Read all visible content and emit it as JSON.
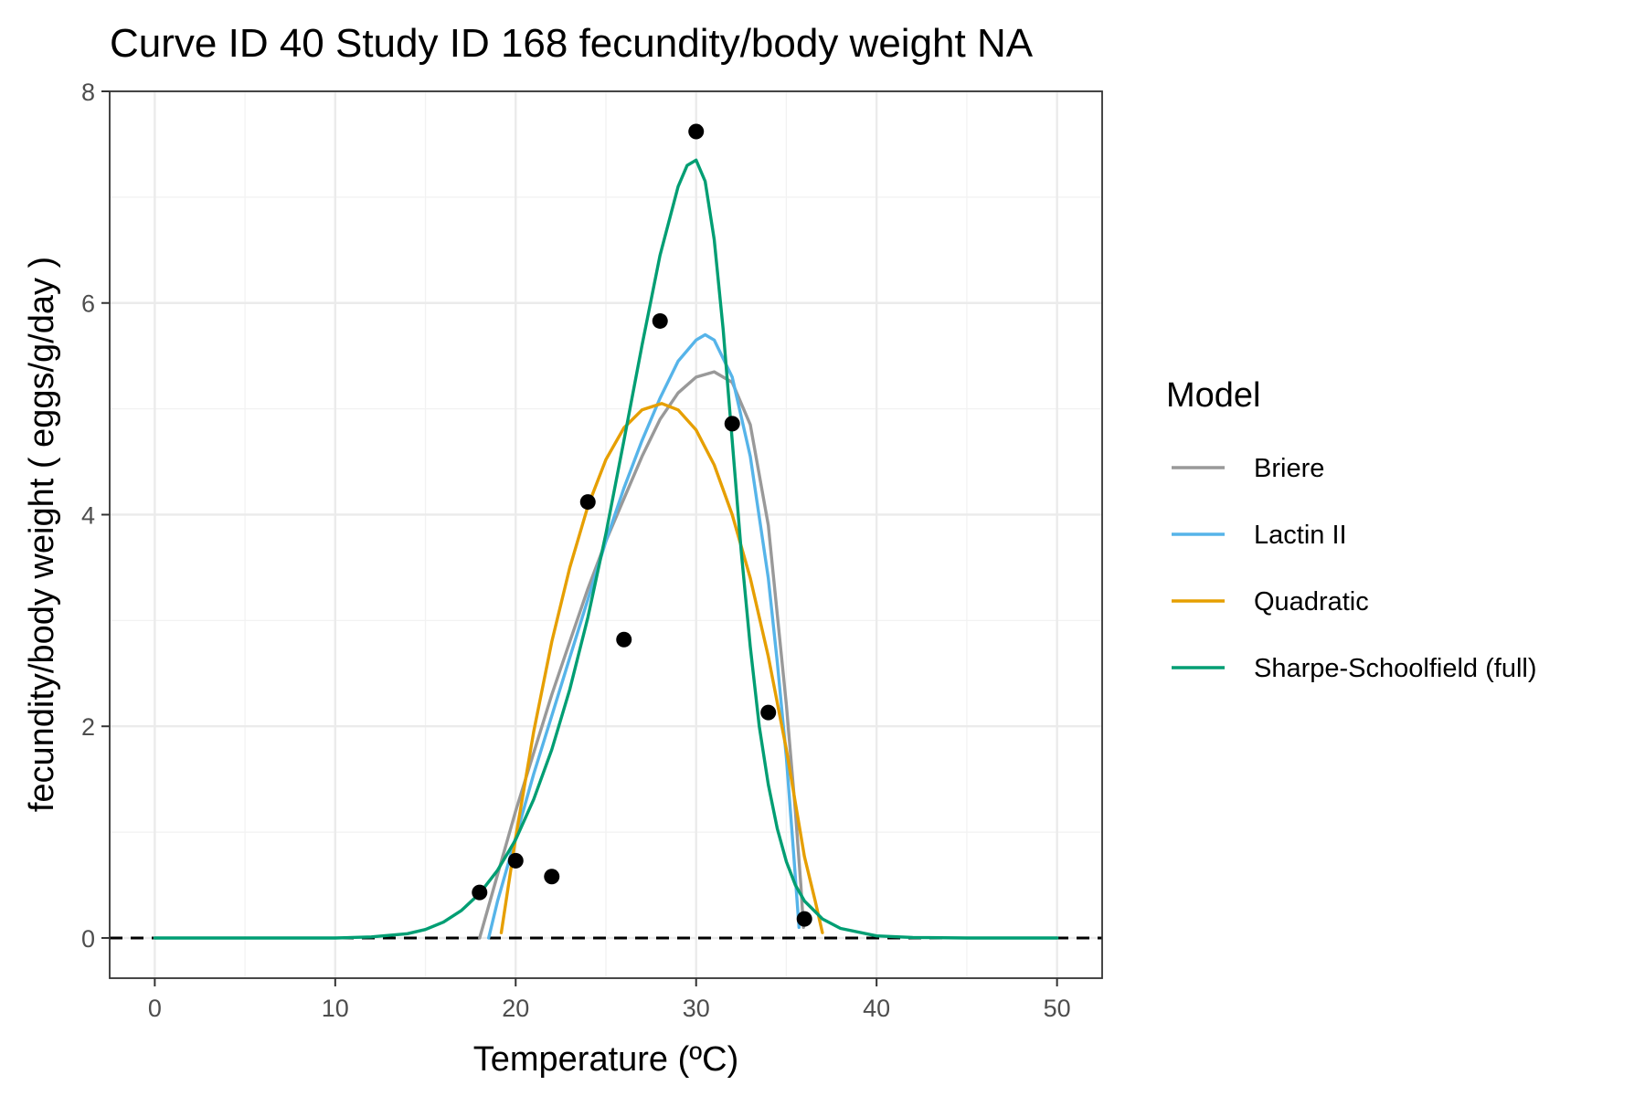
{
  "chart_data": {
    "type": "line",
    "title": "Curve ID 40 Study ID 168 fecundity/body weight NA",
    "xlabel": "Temperature (ºC)",
    "ylabel": "fecundity/body weight ( eggs/g/day )",
    "xlim": [
      -2.5,
      52.5
    ],
    "ylim": [
      -0.38,
      8.0
    ],
    "x_ticks": [
      0,
      10,
      20,
      30,
      40,
      50
    ],
    "x_tick_labels": [
      "0",
      "10",
      "20",
      "30",
      "40",
      "50"
    ],
    "y_ticks": [
      0,
      2,
      4,
      6,
      8
    ],
    "y_tick_labels": [
      "0",
      "2",
      "4",
      "6",
      "8"
    ],
    "grid": true,
    "reference_line": {
      "y": 0,
      "style": "dashed",
      "color": "#000000"
    },
    "legend": {
      "title": "Model",
      "placement": "right",
      "entries": [
        "Briere",
        "Lactin II",
        "Quadratic",
        "Sharpe-Schoolfield (full)"
      ]
    },
    "points": {
      "color": "#000000",
      "x": [
        18,
        20,
        22,
        24,
        26,
        28,
        30,
        32,
        34,
        36
      ],
      "y": [
        0.43,
        0.73,
        0.58,
        4.12,
        2.82,
        5.83,
        7.62,
        4.86,
        2.13,
        0.18
      ]
    },
    "series": [
      {
        "name": "Briere",
        "color": "#999999",
        "x": [
          18,
          19,
          20,
          21,
          22,
          23,
          24,
          25,
          26,
          27,
          28,
          29,
          30,
          31,
          32,
          33,
          34,
          35,
          35.5,
          35.8,
          35.95
        ],
        "y": [
          0.0,
          0.6,
          1.2,
          1.75,
          2.3,
          2.8,
          3.3,
          3.75,
          4.15,
          4.55,
          4.9,
          5.15,
          5.3,
          5.35,
          5.25,
          4.85,
          3.9,
          2.2,
          1.2,
          0.5,
          0.1
        ]
      },
      {
        "name": "Lactin II",
        "color": "#56B4E9",
        "x": [
          18.5,
          19,
          20,
          21,
          22,
          23,
          24,
          25,
          26,
          27,
          28,
          29,
          30,
          30.5,
          31,
          32,
          33,
          34,
          34.5,
          35,
          35.4,
          35.7
        ],
        "y": [
          0.0,
          0.35,
          0.95,
          1.55,
          2.1,
          2.65,
          3.2,
          3.75,
          4.25,
          4.7,
          5.1,
          5.45,
          5.65,
          5.7,
          5.65,
          5.3,
          4.55,
          3.4,
          2.6,
          1.7,
          0.8,
          0.1
        ]
      },
      {
        "name": "Quadratic",
        "color": "#E69F00",
        "x": [
          19.2,
          20,
          21,
          22,
          23,
          24,
          25,
          26,
          27,
          28.1,
          29,
          30,
          31,
          32,
          33,
          34,
          35,
          36,
          36.6,
          37
        ],
        "y": [
          0.05,
          0.95,
          1.95,
          2.8,
          3.5,
          4.08,
          4.52,
          4.82,
          4.99,
          5.05,
          4.99,
          4.8,
          4.47,
          4.0,
          3.4,
          2.66,
          1.78,
          0.77,
          0.35,
          0.05
        ]
      },
      {
        "name": "Sharpe-Schoolfield (full)",
        "color": "#009E73",
        "x": [
          0,
          5,
          10,
          12,
          14,
          15,
          16,
          17,
          18,
          19,
          20,
          21,
          22,
          23,
          24,
          25,
          26,
          27,
          28,
          29,
          29.5,
          30,
          30.5,
          31,
          31.5,
          32,
          32.5,
          33,
          33.5,
          34,
          34.5,
          35,
          35.5,
          36,
          37,
          38,
          40,
          42,
          45,
          50
        ],
        "y": [
          0,
          0,
          0,
          0.01,
          0.04,
          0.08,
          0.15,
          0.26,
          0.42,
          0.64,
          0.93,
          1.31,
          1.78,
          2.35,
          3.03,
          3.82,
          4.7,
          5.6,
          6.45,
          7.1,
          7.3,
          7.35,
          7.15,
          6.6,
          5.75,
          4.7,
          3.65,
          2.75,
          2.0,
          1.45,
          1.03,
          0.72,
          0.5,
          0.35,
          0.18,
          0.09,
          0.02,
          0.005,
          0,
          0
        ]
      }
    ]
  }
}
